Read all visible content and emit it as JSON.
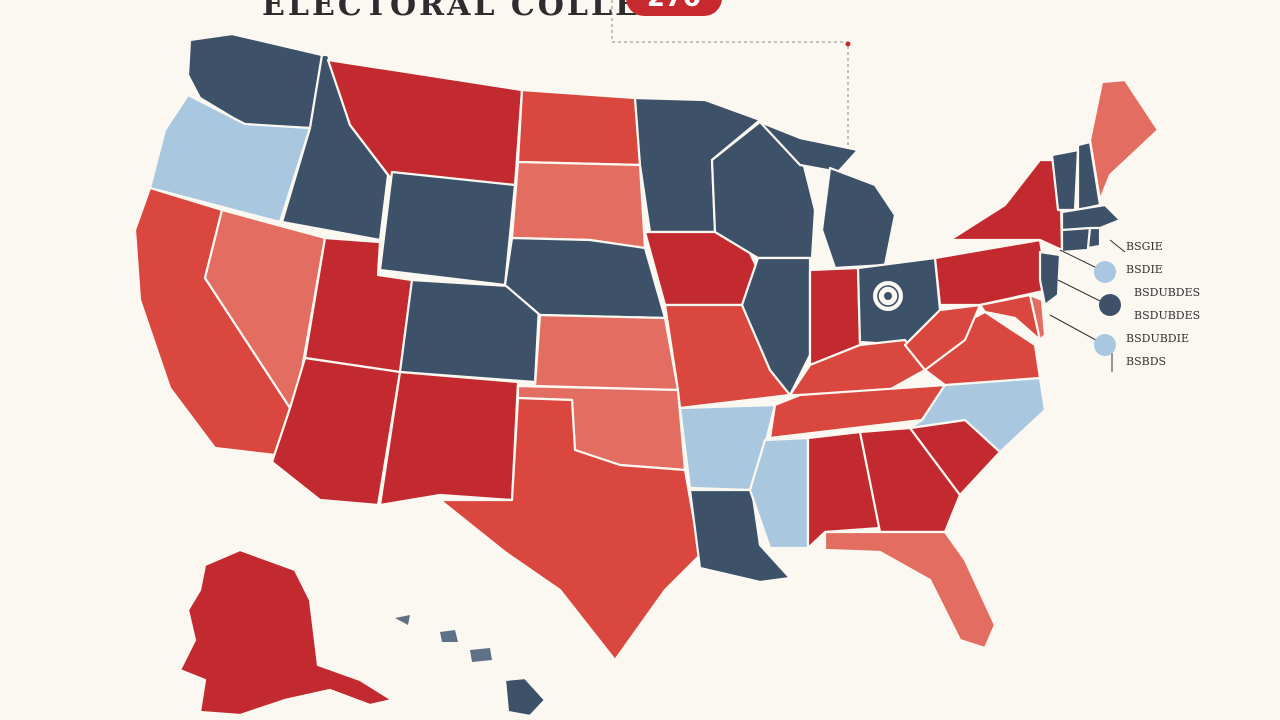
{
  "header": {
    "title": "ELECTORAL COLLEGE",
    "badge_text": "270"
  },
  "colors": {
    "background": "#fbf8f2",
    "dark_red": "#c32a2f",
    "red": "#d9473f",
    "light_red": "#e46d62",
    "dark_blue": "#3d5168",
    "light_blue": "#a9c8e0"
  },
  "legend": {
    "items": [
      {
        "label": "BSGIE",
        "swatch": ""
      },
      {
        "label": "BSDIE",
        "swatch": "light_blue"
      },
      {
        "label": "BSDUBDES",
        "swatch": ""
      },
      {
        "label": "BSDUBDES",
        "swatch": "dark_blue"
      },
      {
        "label": "BSDUBDIE",
        "swatch": "light_blue"
      },
      {
        "label": "BSBDS",
        "swatch": ""
      }
    ]
  },
  "ohio_emblem_icon": "seal-icon",
  "states": {
    "WA": "dark_blue",
    "OR": "light_blue",
    "CA": "red",
    "ID": "dark_blue",
    "NV": "light_red",
    "MT": "dark_red",
    "WY": "dark_blue",
    "UT": "dark_red",
    "AZ": "dark_red",
    "CO": "dark_blue",
    "NM": "dark_red",
    "ND": "red",
    "SD": "light_red",
    "NE": "dark_blue",
    "KS": "light_red",
    "OK": "light_red",
    "TX": "red",
    "MN": "dark_blue",
    "IA": "dark_red",
    "MO": "red",
    "AR": "light_blue",
    "LA": "dark_blue",
    "WI": "dark_blue",
    "IL": "dark_blue",
    "MS": "light_blue",
    "MI": "dark_blue",
    "IN": "dark_red",
    "OH": "dark_blue",
    "KY": "red",
    "TN": "red",
    "AL": "dark_red",
    "GA": "dark_red",
    "FL": "light_red",
    "SC": "dark_red",
    "NC": "light_blue",
    "VA": "red",
    "WV": "red",
    "PA": "dark_red",
    "NY": "dark_red",
    "NJ": "dark_blue",
    "DE": "light_red",
    "MD": "red",
    "CT": "dark_blue",
    "RI": "dark_blue",
    "MA": "dark_blue",
    "VT": "dark_blue",
    "NH": "dark_blue",
    "ME": "light_red",
    "AK": "dark_red",
    "HI": "dark_blue"
  }
}
